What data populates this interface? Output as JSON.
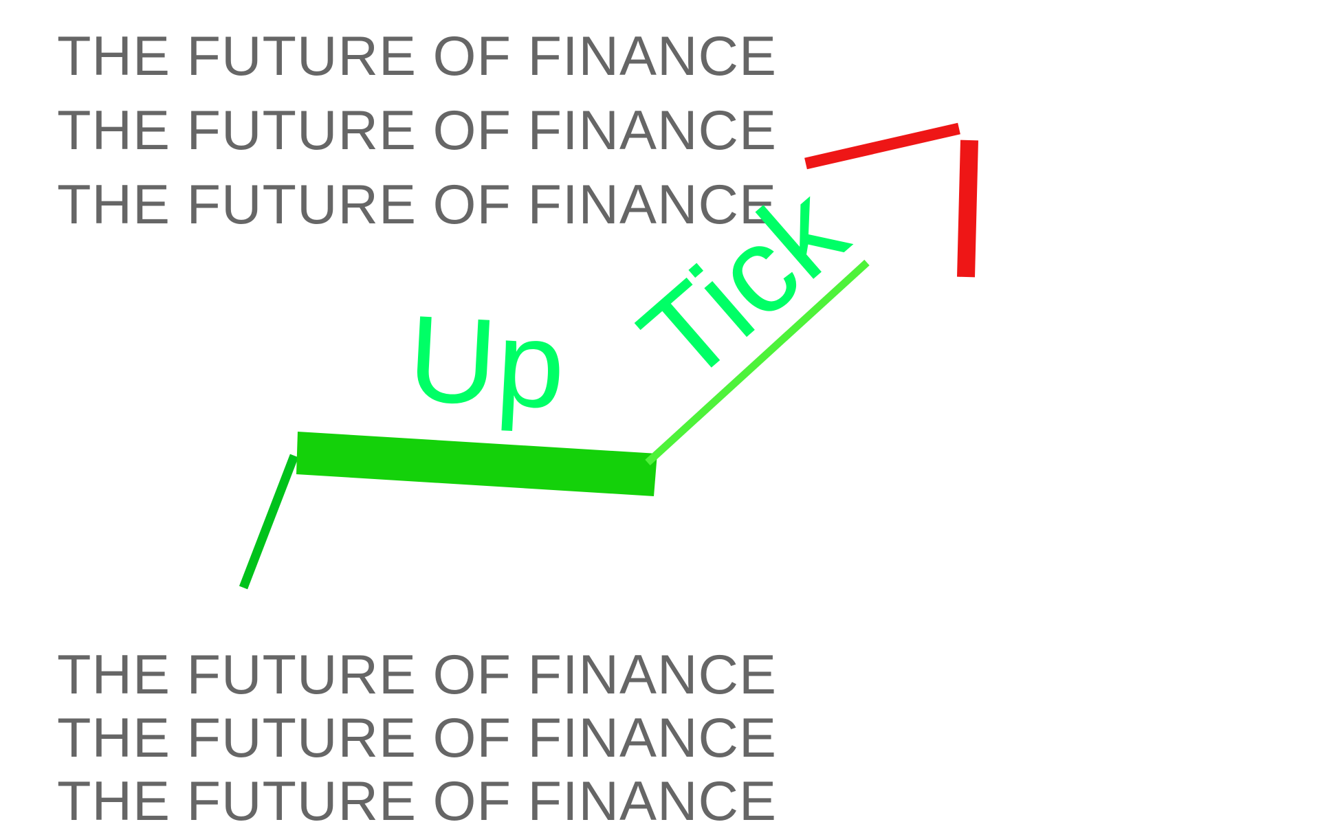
{
  "taglines_top": [
    "THE FUTURE OF FINANCE",
    "THE FUTURE OF FINANCE",
    "THE FUTURE OF FINANCE"
  ],
  "taglines_bottom": [
    "THE FUTURE OF FINANCE",
    "THE FUTURE OF FINANCE",
    "THE FUTURE OF FINANCE"
  ],
  "logo": {
    "word_1": "Up",
    "word_2": "Tick"
  },
  "colors": {
    "tagline": "#666666",
    "wordmark": "#00ff66",
    "rise_dark": "#00c21b",
    "bar": "#14d10a",
    "rise_light": "#4ef23a",
    "tick_red": "#ee1616"
  }
}
